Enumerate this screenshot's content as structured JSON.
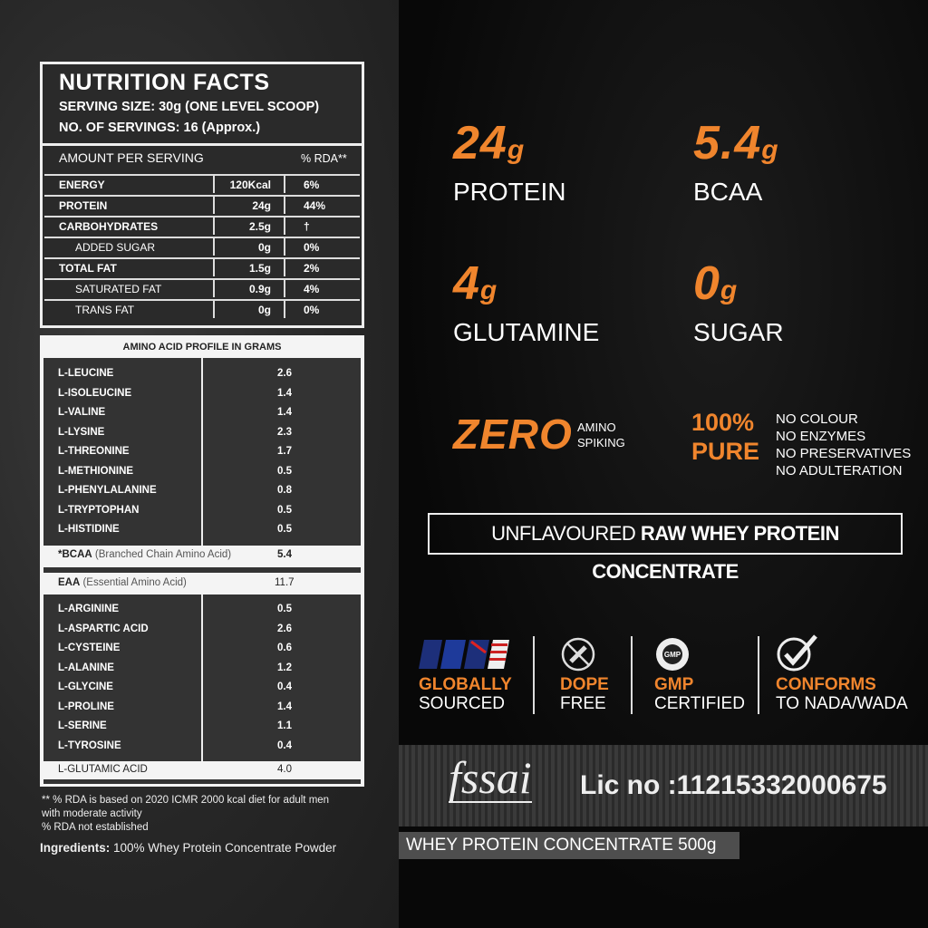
{
  "nutrition": {
    "title": "NUTRITION FACTS",
    "serving_size": "SERVING SIZE: 30g (ONE LEVEL SCOOP)",
    "servings": "NO. OF SERVINGS: 16 (Approx.)",
    "amount_header": "AMOUNT PER SERVING",
    "rda_header": "% RDA**",
    "rows": [
      {
        "name": "ENERGY",
        "value": "120Kcal",
        "rda": "6%"
      },
      {
        "name": "PROTEIN",
        "value": "24g",
        "rda": "44%"
      },
      {
        "name": "CARBOHYDRATES",
        "value": "2.5g",
        "rda": "†"
      },
      {
        "name": "ADDED SUGAR",
        "value": "0g",
        "rda": "0%"
      },
      {
        "name": "TOTAL FAT",
        "value": "1.5g",
        "rda": "2%"
      },
      {
        "name": "SATURATED FAT",
        "value": "0.9g",
        "rda": "4%"
      },
      {
        "name": "TRANS FAT",
        "value": "0g",
        "rda": "0%"
      }
    ]
  },
  "amino": {
    "title": "AMINO ACID PROFILE IN GRAMS",
    "essential": [
      {
        "name": "L-LEUCINE",
        "value": "2.6"
      },
      {
        "name": "L-ISOLEUCINE",
        "value": "1.4"
      },
      {
        "name": "L-VALINE",
        "value": "1.4"
      },
      {
        "name": "L-LYSINE",
        "value": "2.3"
      },
      {
        "name": "L-THREONINE",
        "value": "1.7"
      },
      {
        "name": "L-METHIONINE",
        "value": "0.5"
      },
      {
        "name": "L-PHENYLALANINE",
        "value": "0.8"
      },
      {
        "name": "L-TRYPTOPHAN",
        "value": "0.5"
      },
      {
        "name": "L-HISTIDINE",
        "value": "0.5"
      }
    ],
    "bcaa": {
      "bold": "*BCAA",
      "label": " (Branched Chain Amino Acid)",
      "value": "5.4"
    },
    "eaa": {
      "bold": "EAA",
      "label": " (Essential Amino Acid)",
      "value": "11.7"
    },
    "nonessential": [
      {
        "name": "L-ARGININE",
        "value": "0.5"
      },
      {
        "name": "L-ASPARTIC ACID",
        "value": "2.6"
      },
      {
        "name": "L-CYSTEINE",
        "value": "0.6"
      },
      {
        "name": "L-ALANINE",
        "value": "1.2"
      },
      {
        "name": "L-GLYCINE",
        "value": "0.4"
      },
      {
        "name": "L-PROLINE",
        "value": "1.4"
      },
      {
        "name": "L-SERINE",
        "value": "1.1"
      },
      {
        "name": "L-TYROSINE",
        "value": "0.4"
      }
    ],
    "glutamic": {
      "name": "L-GLUTAMIC ACID",
      "value": "4.0"
    }
  },
  "footnotes": {
    "line1": "** % RDA is based on 2020 ICMR 2000 kcal diet for adult men",
    "line2": "with moderate activity",
    "line3": "% RDA not established",
    "ingredients_label": "Ingredients:",
    "ingredients": " 100% Whey Protein Concentrate Powder"
  },
  "highlights": [
    {
      "num": "24",
      "unit": "g",
      "label": "PROTEIN"
    },
    {
      "num": "5.4",
      "unit": "g",
      "label": "BCAA"
    },
    {
      "num": "4",
      "unit": "g",
      "label": "GLUTAMINE"
    },
    {
      "num": "0",
      "unit": "g",
      "label": "SUGAR"
    }
  ],
  "zero": {
    "big": "ZERO",
    "l1": "AMINO",
    "l2": "SPIKING"
  },
  "pure": {
    "l1": "100%",
    "l2": "PURE",
    "items": [
      "NO COLOUR",
      "NO ENZYMES",
      "NO PRESERVATIVES",
      "NO ADULTERATION"
    ]
  },
  "banner": {
    "normal": "UNFLAVOURED ",
    "bold": "RAW WHEY PROTEIN CONCENTRATE"
  },
  "badges": [
    {
      "icon": "flags-icon",
      "t": "GLOBALLY",
      "s": "SOURCED"
    },
    {
      "icon": "no-syringe-icon",
      "t": "DOPE",
      "s": "FREE"
    },
    {
      "icon": "gmp-seal-icon",
      "t": "GMP",
      "s": "CERTIFIED"
    },
    {
      "icon": "check-circle-icon",
      "t": "CONFORMS",
      "s": "TO NADA/WADA"
    }
  ],
  "fssai": {
    "logo": "fssai",
    "license": "Lic no :11215332000675"
  },
  "product_tag": "WHEY PROTEIN CONCENTRATE 500g",
  "colors": {
    "accent": "#f0852d",
    "background": "#0b0b0b",
    "panel": "#2a2a2a"
  }
}
